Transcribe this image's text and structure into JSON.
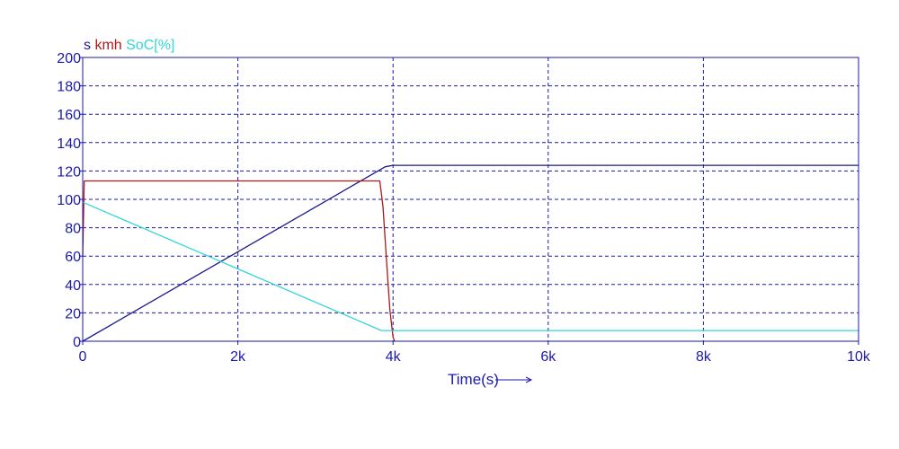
{
  "chart_data": {
    "type": "line",
    "xlabel": "Time(s)",
    "ylabel": "",
    "xlim": [
      0,
      10000
    ],
    "ylim": [
      0,
      200
    ],
    "grid": true,
    "x_ticks": [
      {
        "value": 0,
        "label": "0"
      },
      {
        "value": 2000,
        "label": "2k"
      },
      {
        "value": 4000,
        "label": "4k"
      },
      {
        "value": 6000,
        "label": "6k"
      },
      {
        "value": 8000,
        "label": "8k"
      },
      {
        "value": 10000,
        "label": "10k"
      }
    ],
    "y_ticks": [
      0,
      20,
      40,
      60,
      80,
      100,
      120,
      140,
      160,
      180,
      200
    ],
    "series": [
      {
        "name": "s",
        "color": "#1a1a8c",
        "x": [
          0,
          3900,
          4000,
          10000
        ],
        "y": [
          0,
          123,
          124,
          124
        ]
      },
      {
        "name": "kmh",
        "color": "#b01818",
        "x": [
          0,
          20,
          3830,
          3870,
          3900,
          3930,
          3960,
          4000,
          4020
        ],
        "y": [
          60,
          113,
          113,
          95,
          70,
          45,
          22,
          3,
          0
        ]
      },
      {
        "name": "SoC[%]",
        "color": "#33d6d6",
        "x": [
          0,
          3850,
          10000
        ],
        "y": [
          98,
          7.5,
          7.5
        ]
      }
    ]
  },
  "colors": {
    "axis": "#1a1aa8",
    "grid": "#1a1aa8",
    "background": "#ffffff"
  }
}
